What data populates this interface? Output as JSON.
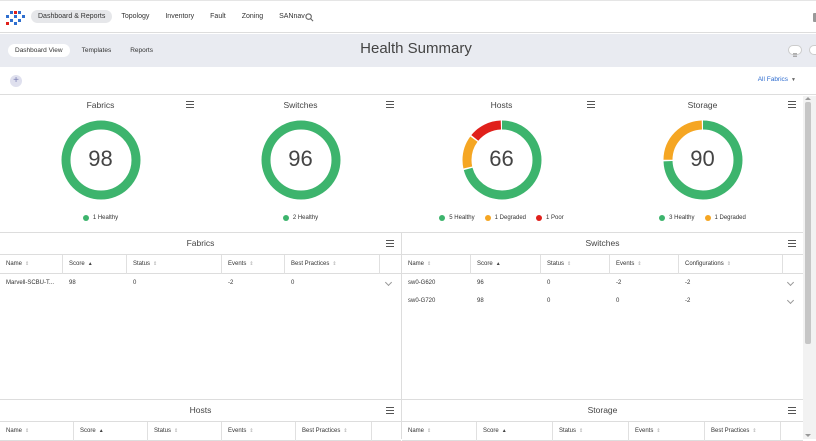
{
  "nav": {
    "items": [
      {
        "label": "Dashboard & Reports",
        "active": true
      },
      {
        "label": "Topology"
      },
      {
        "label": "Inventory"
      },
      {
        "label": "Fault"
      },
      {
        "label": "Zoning"
      },
      {
        "label": "SANnav"
      }
    ],
    "search_icon": "search-icon",
    "logo_icon": "logo-icon"
  },
  "subnav": {
    "tabs": [
      {
        "label": "Dashboard View",
        "active": true
      },
      {
        "label": "Templates"
      },
      {
        "label": "Reports"
      }
    ],
    "title": "Health Summary"
  },
  "toolbar": {
    "add_label": "+",
    "filter_label": "All Fabrics"
  },
  "colors": {
    "healthy": "#3db46d",
    "degraded": "#f5a623",
    "poor": "#e0201b"
  },
  "cards": [
    {
      "title": "Fabrics",
      "score": "98",
      "segments": [
        {
          "status": "healthy",
          "fraction": 1.0
        }
      ],
      "legend": [
        {
          "status": "healthy",
          "label": "1 Healthy"
        }
      ]
    },
    {
      "title": "Switches",
      "score": "96",
      "segments": [
        {
          "status": "healthy",
          "fraction": 1.0
        }
      ],
      "legend": [
        {
          "status": "healthy",
          "label": "2 Healthy"
        }
      ]
    },
    {
      "title": "Hosts",
      "score": "66",
      "segments": [
        {
          "status": "healthy",
          "fraction": 0.7143
        },
        {
          "status": "degraded",
          "fraction": 0.1429
        },
        {
          "status": "poor",
          "fraction": 0.1428
        }
      ],
      "legend": [
        {
          "status": "healthy",
          "label": "5 Healthy"
        },
        {
          "status": "degraded",
          "label": "1 Degraded"
        },
        {
          "status": "poor",
          "label": "1 Poor"
        }
      ]
    },
    {
      "title": "Storage",
      "score": "90",
      "segments": [
        {
          "status": "healthy",
          "fraction": 0.75
        },
        {
          "status": "degraded",
          "fraction": 0.25
        }
      ],
      "legend": [
        {
          "status": "healthy",
          "label": "3 Healthy"
        },
        {
          "status": "degraded",
          "label": "1 Degraded"
        }
      ]
    }
  ],
  "tables": {
    "fabrics": {
      "title": "Fabrics",
      "columns": [
        "Name",
        "Score",
        "Status",
        "Events",
        "Best Practices"
      ],
      "rows": [
        [
          "Marvell-SCBU-T...",
          "98",
          "0",
          "-2",
          "0"
        ]
      ]
    },
    "switches": {
      "title": "Switches",
      "columns": [
        "Name",
        "Score",
        "Status",
        "Events",
        "Configurations"
      ],
      "rows": [
        [
          "sw0-G620",
          "96",
          "0",
          "-2",
          "-2"
        ],
        [
          "sw0-G720",
          "98",
          "0",
          "0",
          "-2"
        ]
      ]
    },
    "hosts": {
      "title": "Hosts",
      "columns": [
        "Name",
        "Score",
        "Status",
        "Events",
        "Best Practices"
      ],
      "rows": []
    },
    "storage": {
      "title": "Storage",
      "columns": [
        "Name",
        "Score",
        "Status",
        "Events",
        "Best Practices"
      ],
      "rows": []
    }
  }
}
